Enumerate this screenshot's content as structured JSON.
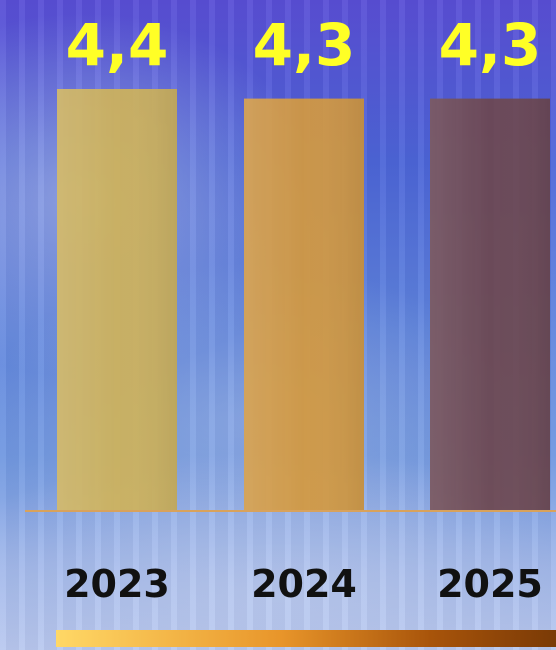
{
  "chart_data": {
    "type": "bar",
    "categories": [
      "2023",
      "2024",
      "2025"
    ],
    "values": [
      4.4,
      4.3,
      4.3
    ],
    "value_labels": [
      "4,4",
      "4,3",
      "4,3"
    ],
    "bar_colors": [
      "#cdb25a",
      "#d3993f",
      "#6d4750"
    ],
    "value_label_color": "#ffff26",
    "category_label_color": "#111111",
    "baseline_color": "#d8a25c",
    "ylim": [
      0,
      4.4
    ],
    "grid": false,
    "title": "",
    "xlabel": "",
    "ylabel": ""
  },
  "accent_gradient": [
    "#ffd866",
    "#e8952a",
    "#a8540a",
    "#7a3a06"
  ]
}
